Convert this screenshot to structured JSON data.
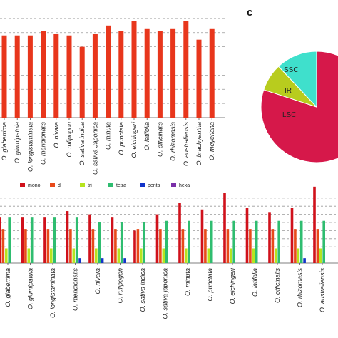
{
  "panel_label_c": "c",
  "colors": {
    "top_bar": "#e8361c",
    "mono": "#d0111b",
    "di": "#e84a1a",
    "tri": "#b6e41e",
    "tetra": "#2fbd70",
    "penta": "#1233c8",
    "hexa": "#7a2ea8",
    "pie_lsc": "#d6184a",
    "pie_ir": "#b8cc1e",
    "pie_ssc": "#3fe0cc",
    "grid": "#9a9a9a",
    "axis": "#555555"
  },
  "chart_data": [
    {
      "type": "bar",
      "categories": [
        "O. glaberrima",
        "O. glumipatula",
        "O. longistaminata",
        "O. meridionalis",
        "O. nivara",
        "O. rufipogon",
        "O. sativa indica",
        "O. sativa Japonica",
        "O. minuta",
        "O. punctata",
        "O. eichingeri",
        "O. latifolia",
        "O. officinalis",
        "O. rhizomasis",
        "O. australiensis",
        "O. brachyantha",
        "O. meyeriana"
      ],
      "values": [
        58,
        58,
        58,
        61,
        59,
        58,
        50,
        59,
        65,
        61,
        68,
        63,
        61,
        63,
        68,
        55,
        63
      ],
      "ylim": [
        0,
        80
      ],
      "grid": true,
      "title": "",
      "xlabel": "",
      "ylabel": ""
    },
    {
      "type": "pie",
      "slices": [
        {
          "label": "LSC",
          "value": 80
        },
        {
          "label": "IR",
          "value": 8
        },
        {
          "label": "SSC",
          "value": 12
        }
      ]
    },
    {
      "type": "bar",
      "legend_position": "top",
      "categories": [
        "O. glaberrima",
        "O. glumipatula",
        "O. longistaminata",
        "O. meridionalis",
        "O. nivara",
        "O. rufipogon",
        "O. sativa indica",
        "O. sativa japonica",
        "O. minuta",
        "O. punctata",
        "O. eichingeri",
        "O. latifolia",
        "O. officinalis",
        "O. rhizomasis",
        "O. australiensis"
      ],
      "series": [
        {
          "name": "mono",
          "values": [
            28,
            28,
            28,
            32,
            30,
            28,
            20,
            30,
            37,
            33,
            43,
            34,
            31,
            34,
            47
          ]
        },
        {
          "name": "di",
          "values": [
            21,
            21,
            21,
            21,
            21,
            21,
            21,
            21,
            21,
            21,
            21,
            21,
            21,
            21,
            21
          ]
        },
        {
          "name": "tri",
          "values": [
            9,
            9,
            9,
            9,
            9,
            9,
            9,
            9,
            9,
            9,
            9,
            9,
            9,
            9,
            9
          ]
        },
        {
          "name": "tetra",
          "values": [
            28,
            28,
            28,
            28,
            25,
            25,
            25,
            26,
            26,
            26,
            26,
            26,
            26,
            26,
            26
          ]
        },
        {
          "name": "penta",
          "values": [
            0,
            0,
            0,
            3,
            3,
            3,
            0,
            0,
            0,
            0,
            0,
            0,
            0,
            3,
            0
          ]
        },
        {
          "name": "hexa",
          "values": [
            0,
            0,
            0,
            0,
            0,
            0,
            0,
            0,
            0,
            0,
            0,
            0,
            0,
            0,
            0
          ]
        }
      ],
      "ylim": [
        0,
        50
      ],
      "grid": true,
      "title": "",
      "xlabel": "",
      "ylabel": ""
    }
  ]
}
